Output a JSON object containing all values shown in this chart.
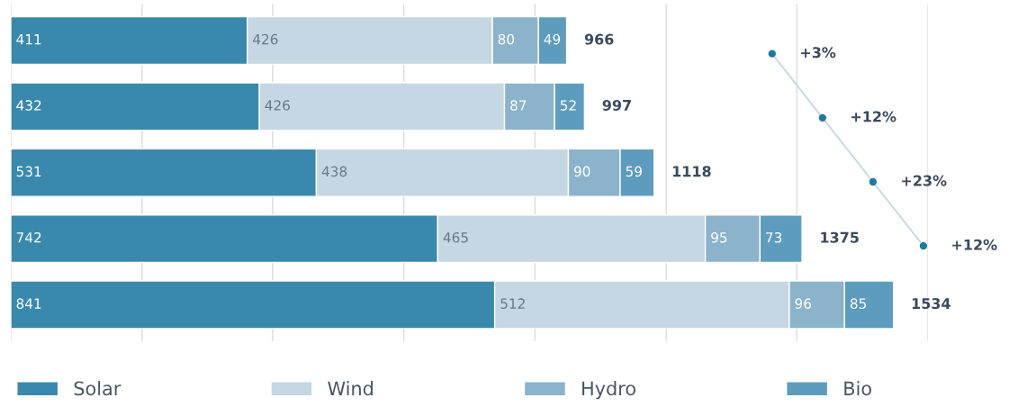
{
  "chart_data": {
    "type": "bar",
    "orientation": "horizontal",
    "stacked": true,
    "categories": [
      null,
      null,
      null,
      null,
      null
    ],
    "series": [
      {
        "name": "Solar",
        "color": "#3a89ad",
        "values": [
          411,
          432,
          531,
          742,
          841
        ]
      },
      {
        "name": "Wind",
        "color": "#c5d7e2",
        "values": [
          426,
          426,
          438,
          465,
          512
        ]
      },
      {
        "name": "Hydro",
        "color": "#8bb3cb",
        "values": [
          80,
          87,
          90,
          95,
          96
        ]
      },
      {
        "name": "Bio",
        "color": "#5e9cbd",
        "values": [
          49,
          52,
          59,
          73,
          85
        ]
      }
    ],
    "totals": [
      "966",
      "997",
      "1118",
      "1375",
      "1534"
    ],
    "data_labels": true,
    "annotations": [
      "+3%",
      "+12%",
      "+23%",
      "+12%"
    ],
    "xlim": [
      0,
      1594
    ],
    "xticks": [
      {
        "value": 0,
        "label": null
      },
      {
        "value": 228,
        "label": null
      },
      {
        "value": 455,
        "label": null
      },
      {
        "value": 683,
        "label": null
      },
      {
        "value": 911,
        "label": null
      },
      {
        "value": 1139,
        "label": null
      },
      {
        "value": 1366,
        "label": null
      },
      {
        "value": 1594,
        "label": null
      }
    ],
    "grid": "x",
    "legend": "bottom"
  }
}
